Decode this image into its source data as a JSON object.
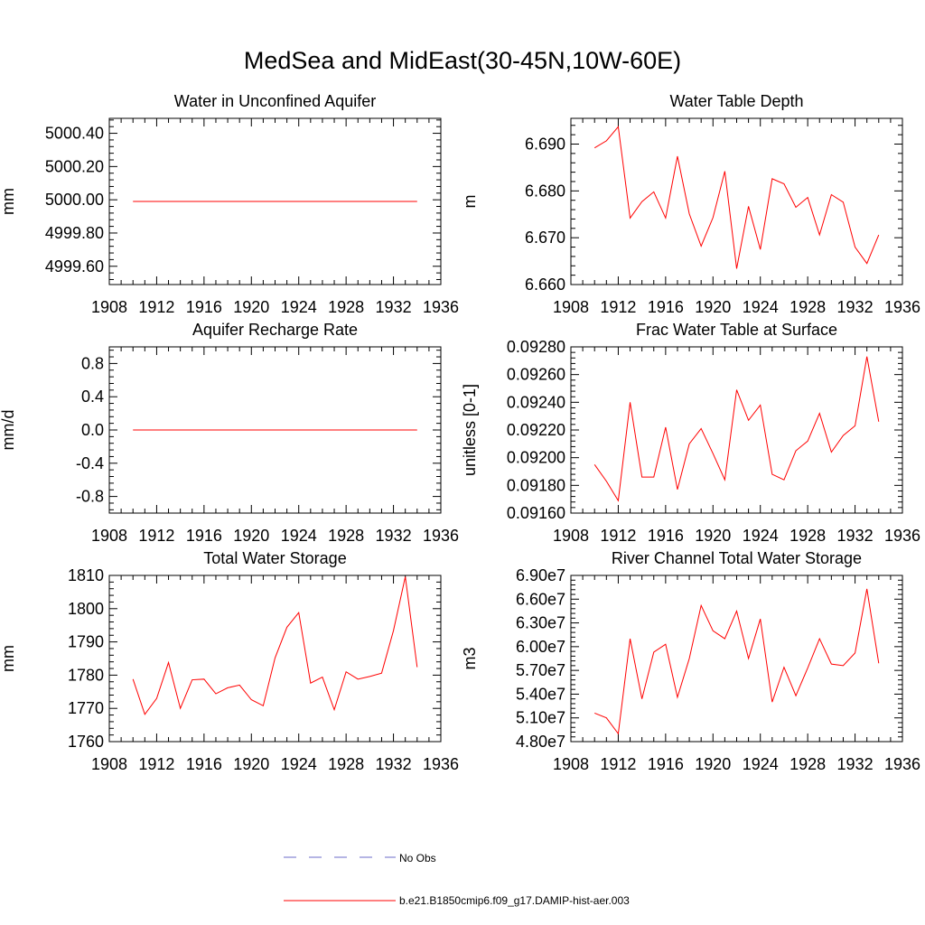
{
  "figure": {
    "title": "MedSea and MidEast(30-45N,10W-60E)"
  },
  "legend": {
    "entries": [
      {
        "label": "No Obs",
        "color": "#6b6bc8",
        "style": "dashed"
      },
      {
        "label": "b.e21.B1850cmip6.f09_g17.DAMIP-hist-aer.003",
        "color": "#ff0000",
        "style": "solid"
      }
    ]
  },
  "chart_data": [
    {
      "type": "line",
      "title": "Water in Unconfined Aquifer",
      "ylabel": "mm",
      "xlim": [
        1908,
        1936
      ],
      "xticks": [
        1908,
        1912,
        1916,
        1920,
        1924,
        1928,
        1932,
        1936
      ],
      "ylim": [
        4999.49,
        5000.49
      ],
      "yticks": [
        4999.6,
        4999.8,
        5000.0,
        5000.2,
        5000.4
      ],
      "ytick_labels": [
        "4999.60",
        "4999.80",
        "5000.00",
        "5000.20",
        "5000.40"
      ],
      "x": [
        1910,
        1911,
        1912,
        1913,
        1914,
        1915,
        1916,
        1917,
        1918,
        1919,
        1920,
        1921,
        1922,
        1923,
        1924,
        1925,
        1926,
        1927,
        1928,
        1929,
        1930,
        1931,
        1932,
        1933,
        1934
      ],
      "series": [
        {
          "values": [
            4999.99,
            4999.99,
            4999.99,
            4999.99,
            4999.99,
            4999.99,
            4999.99,
            4999.99,
            4999.99,
            4999.99,
            4999.99,
            4999.99,
            4999.99,
            4999.99,
            4999.99,
            4999.99,
            4999.99,
            4999.99,
            4999.99,
            4999.99,
            4999.99,
            4999.99,
            4999.99,
            4999.99,
            4999.99
          ]
        }
      ]
    },
    {
      "type": "line",
      "title": "Water Table Depth",
      "ylabel": "m",
      "xlim": [
        1908,
        1936
      ],
      "xticks": [
        1908,
        1912,
        1916,
        1920,
        1924,
        1928,
        1932,
        1936
      ],
      "ylim": [
        6.66,
        6.6955
      ],
      "yticks": [
        6.66,
        6.67,
        6.68,
        6.69
      ],
      "ytick_labels": [
        "6.660",
        "6.670",
        "6.680",
        "6.690"
      ],
      "x": [
        1910,
        1911,
        1912,
        1913,
        1914,
        1915,
        1916,
        1917,
        1918,
        1919,
        1920,
        1921,
        1922,
        1923,
        1924,
        1925,
        1926,
        1927,
        1928,
        1929,
        1930,
        1931,
        1932,
        1933,
        1934
      ],
      "series": [
        {
          "values": [
            6.6892,
            6.6907,
            6.6937,
            6.6742,
            6.6777,
            6.6798,
            6.6742,
            6.6874,
            6.6751,
            6.6682,
            6.6743,
            6.6842,
            6.6634,
            6.6767,
            6.6675,
            6.6826,
            6.6815,
            6.6765,
            6.6786,
            6.6706,
            6.6792,
            6.6776,
            6.668,
            6.6645,
            6.6706
          ]
        }
      ]
    },
    {
      "type": "line",
      "title": "Aquifer Recharge Rate",
      "ylabel": "mm/d",
      "xlim": [
        1908,
        1936
      ],
      "xticks": [
        1908,
        1912,
        1916,
        1920,
        1924,
        1928,
        1932,
        1936
      ],
      "ylim": [
        -1.0,
        1.0
      ],
      "yticks": [
        -0.8,
        -0.4,
        0.0,
        0.4,
        0.8
      ],
      "ytick_labels": [
        "-0.8",
        "-0.4",
        "0.0",
        "0.4",
        "0.8"
      ],
      "x": [
        1910,
        1911,
        1912,
        1913,
        1914,
        1915,
        1916,
        1917,
        1918,
        1919,
        1920,
        1921,
        1922,
        1923,
        1924,
        1925,
        1926,
        1927,
        1928,
        1929,
        1930,
        1931,
        1932,
        1933,
        1934
      ],
      "series": [
        {
          "values": [
            0,
            0,
            0,
            0,
            0,
            0,
            0,
            0,
            0,
            0,
            0,
            0,
            0,
            0,
            0,
            0,
            0,
            0,
            0,
            0,
            0,
            0,
            0,
            0,
            0
          ]
        }
      ]
    },
    {
      "type": "line",
      "title": "Frac Water Table at Surface",
      "ylabel": "unitless [0-1]",
      "xlim": [
        1908,
        1936
      ],
      "xticks": [
        1908,
        1912,
        1916,
        1920,
        1924,
        1928,
        1932,
        1936
      ],
      "ylim": [
        0.0916,
        0.0928
      ],
      "yticks": [
        0.0916,
        0.0918,
        0.092,
        0.0922,
        0.0924,
        0.0926,
        0.0928
      ],
      "ytick_labels": [
        "0.09160",
        "0.09180",
        "0.09200",
        "0.09220",
        "0.09240",
        "0.09260",
        "0.09280"
      ],
      "x": [
        1910,
        1911,
        1912,
        1913,
        1914,
        1915,
        1916,
        1917,
        1918,
        1919,
        1920,
        1921,
        1922,
        1923,
        1924,
        1925,
        1926,
        1927,
        1928,
        1929,
        1930,
        1931,
        1932,
        1933,
        1934
      ],
      "series": [
        {
          "values": [
            0.09195,
            0.09183,
            0.09169,
            0.0924,
            0.09186,
            0.09186,
            0.09222,
            0.09177,
            0.0921,
            0.09221,
            0.09203,
            0.09184,
            0.09249,
            0.09227,
            0.09238,
            0.09188,
            0.09184,
            0.09205,
            0.09212,
            0.09232,
            0.09204,
            0.09216,
            0.09223,
            0.09273,
            0.09226
          ]
        }
      ]
    },
    {
      "type": "line",
      "title": "Total Water Storage",
      "ylabel": "mm",
      "xlim": [
        1908,
        1936
      ],
      "xticks": [
        1908,
        1912,
        1916,
        1920,
        1924,
        1928,
        1932,
        1936
      ],
      "ylim": [
        1760,
        1810
      ],
      "yticks": [
        1760,
        1770,
        1780,
        1790,
        1800,
        1810
      ],
      "ytick_labels": [
        "1760",
        "1770",
        "1780",
        "1790",
        "1800",
        "1810"
      ],
      "x": [
        1910,
        1911,
        1912,
        1913,
        1914,
        1915,
        1916,
        1917,
        1918,
        1919,
        1920,
        1921,
        1922,
        1923,
        1924,
        1925,
        1926,
        1927,
        1928,
        1929,
        1930,
        1931,
        1932,
        1933,
        1934
      ],
      "series": [
        {
          "values": [
            1778.8,
            1768.2,
            1773.0,
            1783.8,
            1770.0,
            1778.6,
            1778.8,
            1774.4,
            1776.2,
            1777.0,
            1772.6,
            1770.8,
            1785.2,
            1794.4,
            1798.8,
            1777.6,
            1779.4,
            1769.6,
            1781.0,
            1778.8,
            1779.6,
            1780.6,
            1793.4,
            1809.6,
            1782.4
          ]
        }
      ]
    },
    {
      "type": "line",
      "title": "River Channel Total Water Storage",
      "ylabel": "m3",
      "xlim": [
        1908,
        1936
      ],
      "xticks": [
        1908,
        1912,
        1916,
        1920,
        1924,
        1928,
        1932,
        1936
      ],
      "ylim": [
        48000000,
        69000000
      ],
      "yticks": [
        48000000,
        51000000,
        54000000,
        57000000,
        60000000,
        63000000,
        66000000,
        69000000
      ],
      "ytick_labels": [
        "4.80e7",
        "5.10e7",
        "5.40e7",
        "5.70e7",
        "6.00e7",
        "6.30e7",
        "6.60e7",
        "6.90e7"
      ],
      "x": [
        1910,
        1911,
        1912,
        1913,
        1914,
        1915,
        1916,
        1917,
        1918,
        1919,
        1920,
        1921,
        1922,
        1923,
        1924,
        1925,
        1926,
        1927,
        1928,
        1929,
        1930,
        1931,
        1932,
        1933,
        1934
      ],
      "series": [
        {
          "values": [
            51600000,
            51000000,
            49000000,
            61000000,
            53400000,
            59300000,
            60300000,
            53600000,
            58500000,
            65200000,
            62000000,
            61000000,
            64500000,
            58500000,
            63500000,
            53000000,
            57400000,
            53800000,
            57300000,
            61000000,
            57800000,
            57600000,
            59200000,
            67300000,
            57900000
          ]
        }
      ]
    }
  ]
}
